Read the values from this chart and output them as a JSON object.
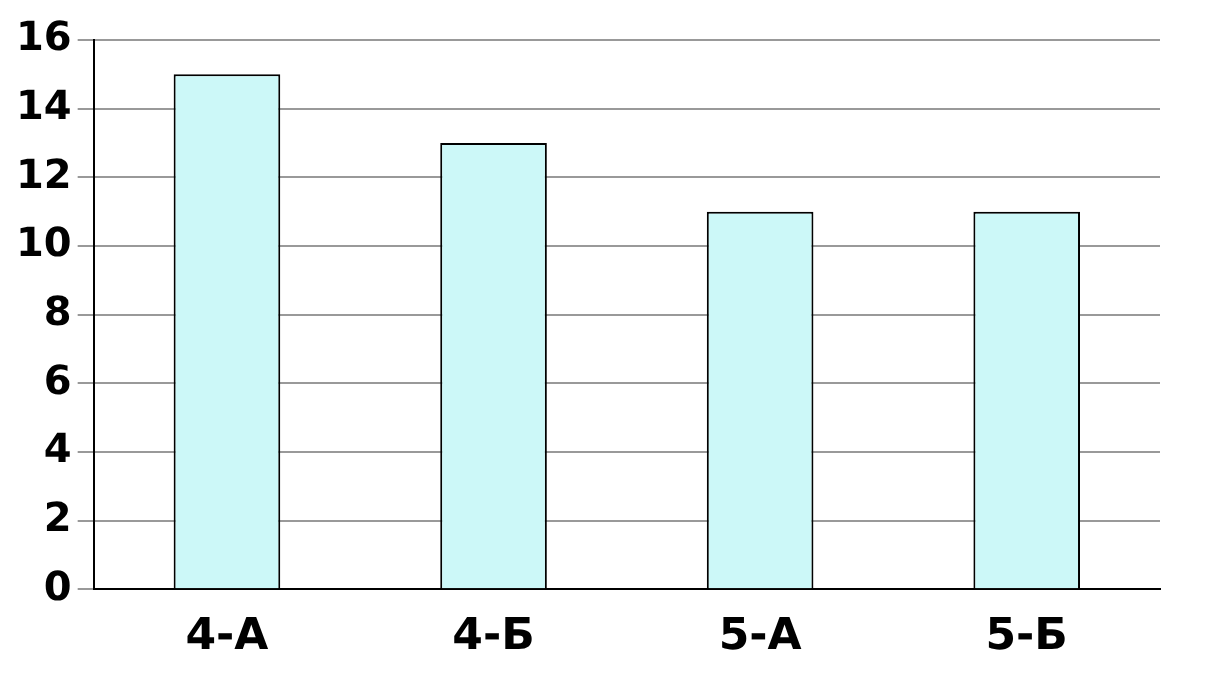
{
  "chart_data": {
    "type": "bar",
    "categories": [
      "4-А",
      "4-Б",
      "5-А",
      "5-Б"
    ],
    "values": [
      15,
      13,
      11,
      11
    ],
    "color": "#ccf8f8",
    "ylim": [
      0,
      16
    ],
    "yticks": [
      0,
      2,
      4,
      6,
      8,
      10,
      12,
      14,
      16
    ],
    "grid": "y"
  }
}
